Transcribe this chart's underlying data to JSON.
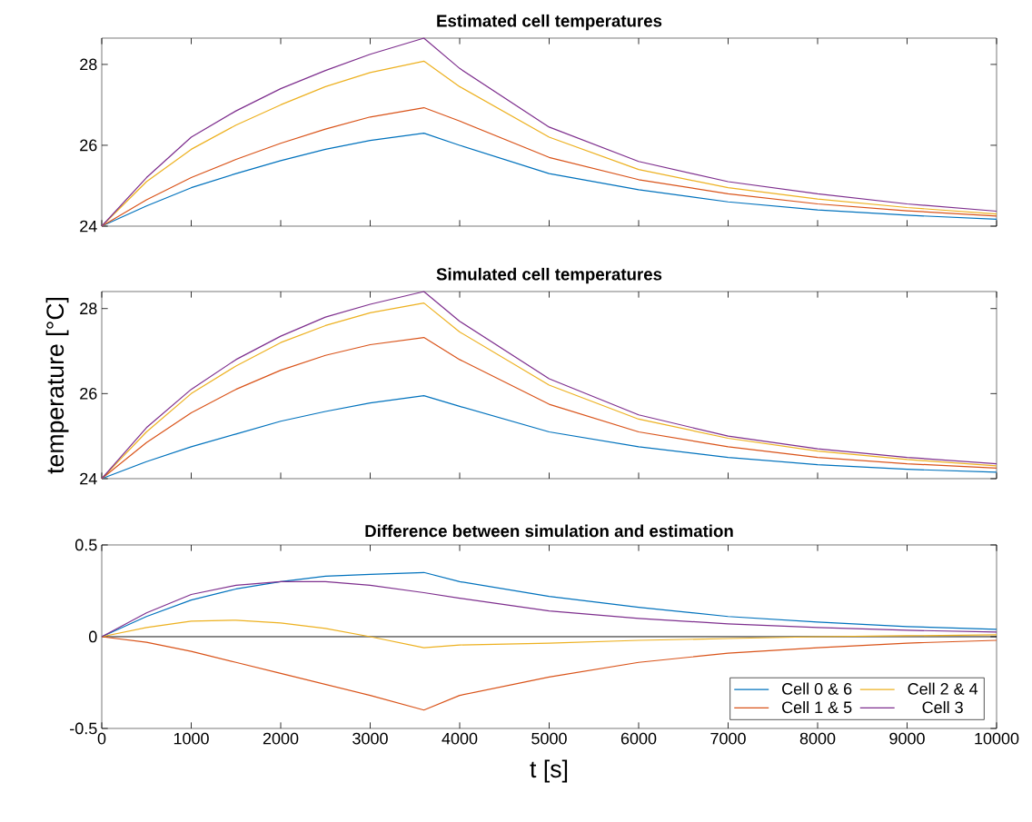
{
  "chart_data": [
    {
      "type": "line",
      "title": "Estimated cell temperatures",
      "x": [
        0,
        500,
        1000,
        1500,
        2000,
        2500,
        3000,
        3600,
        4000,
        5000,
        6000,
        7000,
        8000,
        9000,
        10000
      ],
      "xlim": [
        0,
        10000
      ],
      "xticks": [
        0,
        1000,
        2000,
        3000,
        4000,
        5000,
        6000,
        7000,
        8000,
        9000,
        10000
      ],
      "ylim": [
        24,
        28.65
      ],
      "yticks": [
        24,
        26,
        28
      ],
      "tick_labels": "y",
      "grid": false,
      "legend": false,
      "series": [
        {
          "color": "#0072bd",
          "values": [
            24,
            24.5,
            24.95,
            25.3,
            25.62,
            25.9,
            26.12,
            26.3,
            26.0,
            25.3,
            24.9,
            24.6,
            24.4,
            24.27,
            24.17
          ]
        },
        {
          "color": "#d95319",
          "values": [
            24,
            24.65,
            25.2,
            25.65,
            26.05,
            26.4,
            26.7,
            26.93,
            26.6,
            25.7,
            25.15,
            24.8,
            24.55,
            24.38,
            24.25
          ]
        },
        {
          "color": "#edb120",
          "values": [
            24,
            25.1,
            25.9,
            26.5,
            27.0,
            27.45,
            27.8,
            28.08,
            27.45,
            26.2,
            25.4,
            24.95,
            24.67,
            24.46,
            24.3
          ]
        },
        {
          "color": "#7e2f8e",
          "values": [
            24,
            25.2,
            26.2,
            26.85,
            27.4,
            27.85,
            28.25,
            28.65,
            27.9,
            26.45,
            25.6,
            25.1,
            24.8,
            24.55,
            24.37
          ]
        }
      ]
    },
    {
      "type": "line",
      "title": "Simulated cell temperatures",
      "ylabel": "temperature [°C]",
      "x": [
        0,
        500,
        1000,
        1500,
        2000,
        2500,
        3000,
        3600,
        4000,
        5000,
        6000,
        7000,
        8000,
        9000,
        10000
      ],
      "xlim": [
        0,
        10000
      ],
      "xticks": [
        0,
        1000,
        2000,
        3000,
        4000,
        5000,
        6000,
        7000,
        8000,
        9000,
        10000
      ],
      "ylim": [
        24,
        28.4
      ],
      "yticks": [
        24,
        26,
        28
      ],
      "tick_labels": "y",
      "grid": false,
      "legend": false,
      "series": [
        {
          "color": "#0072bd",
          "values": [
            24,
            24.4,
            24.75,
            25.05,
            25.35,
            25.58,
            25.78,
            25.95,
            25.7,
            25.1,
            24.75,
            24.5,
            24.33,
            24.22,
            24.15
          ]
        },
        {
          "color": "#d95319",
          "values": [
            24,
            24.85,
            25.55,
            26.1,
            26.55,
            26.9,
            27.15,
            27.32,
            26.8,
            25.75,
            25.1,
            24.75,
            24.5,
            24.35,
            24.25
          ]
        },
        {
          "color": "#edb120",
          "values": [
            24,
            25.1,
            26.0,
            26.65,
            27.2,
            27.6,
            27.9,
            28.13,
            27.45,
            26.2,
            25.4,
            24.95,
            24.65,
            24.45,
            24.3
          ]
        },
        {
          "color": "#7e2f8e",
          "values": [
            24,
            25.2,
            26.1,
            26.8,
            27.35,
            27.8,
            28.1,
            28.4,
            27.7,
            26.35,
            25.5,
            25.0,
            24.7,
            24.5,
            24.35
          ]
        }
      ]
    },
    {
      "type": "line",
      "title": "Difference between simulation and estimation",
      "xlabel": "t [s]",
      "x": [
        0,
        500,
        1000,
        1500,
        2000,
        2500,
        3000,
        3600,
        4000,
        5000,
        6000,
        7000,
        8000,
        9000,
        10000
      ],
      "xlim": [
        0,
        10000
      ],
      "xticks": [
        0,
        1000,
        2000,
        3000,
        4000,
        5000,
        6000,
        7000,
        8000,
        9000,
        10000
      ],
      "ylim": [
        -0.5,
        0.5
      ],
      "yticks": [
        -0.5,
        0,
        0.5
      ],
      "grid": false,
      "legend": "bottom right",
      "ref_lines": [
        {
          "axis": "y",
          "value": 0,
          "color": "#000000"
        }
      ],
      "series": [
        {
          "name": "Cell 0 & 6",
          "color": "#0072bd",
          "values": [
            0,
            0.11,
            0.2,
            0.26,
            0.3,
            0.33,
            0.34,
            0.35,
            0.3,
            0.22,
            0.16,
            0.11,
            0.08,
            0.055,
            0.04
          ]
        },
        {
          "name": "Cell 1 & 5",
          "color": "#d95319",
          "values": [
            0,
            -0.03,
            -0.08,
            -0.14,
            -0.2,
            -0.26,
            -0.32,
            -0.4,
            -0.32,
            -0.22,
            -0.14,
            -0.09,
            -0.06,
            -0.035,
            -0.02
          ]
        },
        {
          "name": "Cell 2 & 4",
          "color": "#edb120",
          "values": [
            0,
            0.05,
            0.085,
            0.09,
            0.075,
            0.045,
            0.0,
            -0.06,
            -0.045,
            -0.035,
            -0.02,
            -0.01,
            0.0,
            0.005,
            0.01
          ]
        },
        {
          "name": "Cell 3",
          "color": "#7e2f8e",
          "values": [
            0,
            0.13,
            0.23,
            0.28,
            0.3,
            0.3,
            0.28,
            0.24,
            0.21,
            0.14,
            0.1,
            0.07,
            0.05,
            0.035,
            0.025
          ]
        }
      ]
    }
  ]
}
